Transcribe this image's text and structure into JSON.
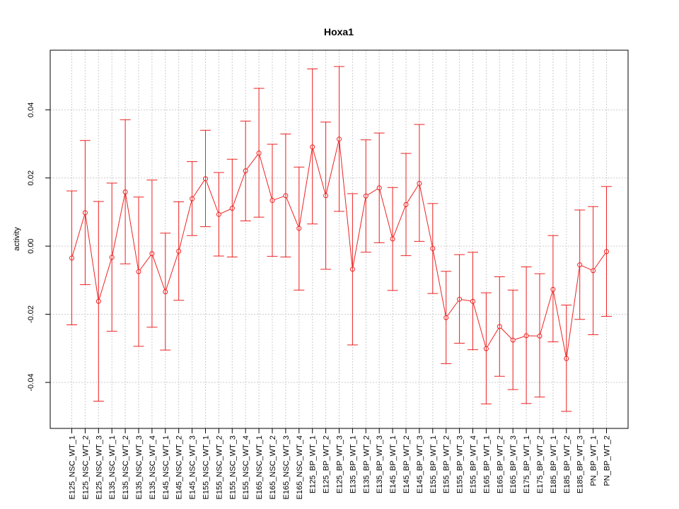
{
  "chart_data": {
    "type": "line",
    "title": "Hoxa1",
    "xlabel": "",
    "ylabel": "activity",
    "ylim": [
      -0.0535,
      0.0575
    ],
    "yticks": [
      -0.04,
      -0.02,
      0.0,
      0.02,
      0.04
    ],
    "ytick_labels": [
      "-0.04",
      "-0.02",
      "0.00",
      "0.02",
      "0.04"
    ],
    "grid": true,
    "legend": "none",
    "error_bars": true,
    "colors": {
      "series": "#ee2222",
      "grid": "#cccccc",
      "frame": "#000000"
    },
    "categories": [
      "E125_NSC_WT_1",
      "E125_NSC_WT_2",
      "E125_NSC_WT_3",
      "E135_NSC_WT_1",
      "E135_NSC_WT_2",
      "E135_NSC_WT_3",
      "E135_NSC_WT_4",
      "E145_NSC_WT_1",
      "E145_NSC_WT_2",
      "E145_NSC_WT_3",
      "E155_NSC_WT_1",
      "E155_NSC_WT_2",
      "E155_NSC_WT_3",
      "E155_NSC_WT_4",
      "E165_NSC_WT_1",
      "E165_NSC_WT_2",
      "E165_NSC_WT_3",
      "E165_NSC_WT_4",
      "E125_BP_WT_1",
      "E125_BP_WT_2",
      "E125_BP_WT_3",
      "E135_BP_WT_1",
      "E135_BP_WT_2",
      "E135_BP_WT_3",
      "E145_BP_WT_1",
      "E145_BP_WT_2",
      "E145_BP_WT_3",
      "E155_BP_WT_1",
      "E155_BP_WT_2",
      "E155_BP_WT_3",
      "E155_BP_WT_4",
      "E165_BP_WT_1",
      "E165_BP_WT_2",
      "E165_BP_WT_3",
      "E175_BP_WT_1",
      "E175_BP_WT_2",
      "E185_BP_WT_1",
      "E185_BP_WT_2",
      "E185_BP_WT_3",
      "PN_BP_WT_1",
      "PN_BP_WT_2"
    ],
    "values": [
      -0.0035,
      0.0098,
      -0.0162,
      -0.0033,
      0.0159,
      -0.0075,
      -0.0022,
      -0.0134,
      -0.0015,
      0.0139,
      0.0198,
      0.0093,
      0.0111,
      0.0221,
      0.0273,
      0.0134,
      0.0148,
      0.0052,
      0.0291,
      0.0148,
      0.0314,
      -0.0068,
      0.0147,
      0.0171,
      0.0021,
      0.0122,
      0.0184,
      -0.0007,
      -0.021,
      -0.0156,
      -0.0162,
      -0.0301,
      -0.0236,
      -0.0276,
      -0.0263,
      -0.0264,
      -0.0127,
      -0.033,
      -0.0055,
      -0.0072,
      -0.0016
    ],
    "upper": [
      0.0162,
      0.031,
      0.0131,
      0.0185,
      0.0371,
      0.0144,
      0.0194,
      0.0038,
      0.013,
      0.0248,
      0.034,
      0.0216,
      0.0255,
      0.0367,
      0.0463,
      0.0299,
      0.0329,
      0.0232,
      0.052,
      0.0364,
      0.0527,
      0.0154,
      0.0312,
      0.0332,
      0.0172,
      0.0272,
      0.0357,
      0.0125,
      -0.0074,
      -0.0025,
      -0.0018,
      -0.0137,
      -0.009,
      -0.0129,
      -0.0061,
      -0.0081,
      0.0031,
      -0.0173,
      0.0106,
      0.0116,
      0.0175
    ],
    "lower": [
      -0.0231,
      -0.0113,
      -0.0455,
      -0.025,
      -0.0052,
      -0.0294,
      -0.0238,
      -0.0305,
      -0.0159,
      0.0031,
      0.0057,
      -0.0029,
      -0.0032,
      0.0074,
      0.0085,
      -0.003,
      -0.0032,
      -0.0129,
      0.0065,
      -0.0068,
      0.0102,
      -0.029,
      -0.0018,
      0.001,
      -0.013,
      -0.0028,
      0.0014,
      -0.0139,
      -0.0345,
      -0.0285,
      -0.0304,
      -0.0463,
      -0.0382,
      -0.0421,
      -0.0462,
      -0.0443,
      -0.0281,
      -0.0485,
      -0.0215,
      -0.026,
      -0.0206
    ]
  }
}
